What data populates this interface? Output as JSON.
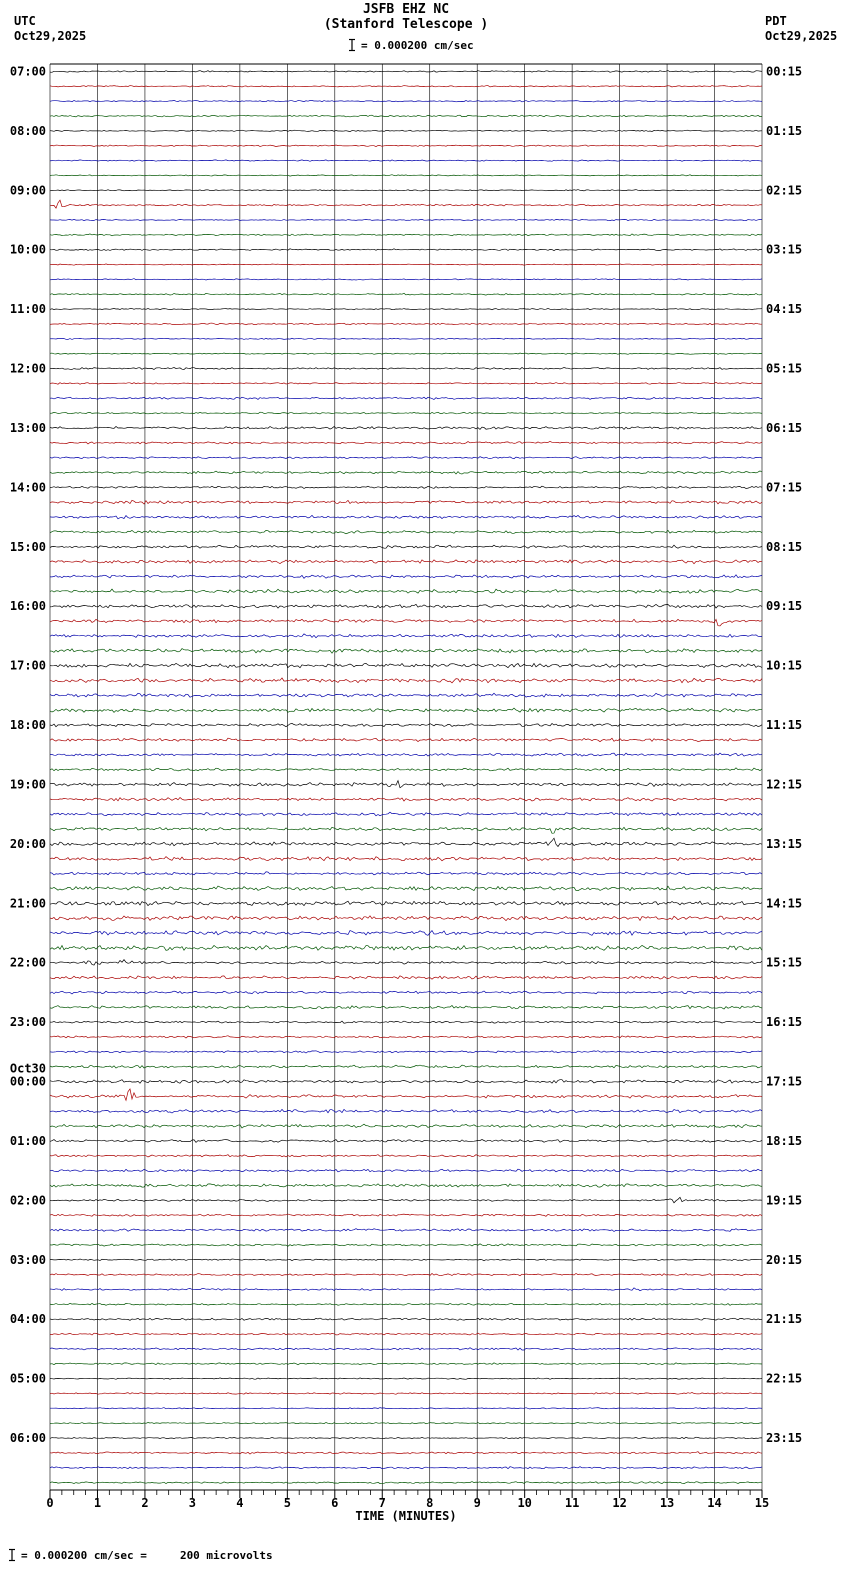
{
  "header": {
    "title": "JSFB EHZ NC",
    "subtitle": "(Stanford Telescope )",
    "scale_text": "= 0.000200 cm/sec",
    "left_timezone": "UTC",
    "left_date": "Oct29,2025",
    "right_timezone": "PDT",
    "right_date": "Oct29,2025"
  },
  "footer": {
    "note": "= 0.000200 cm/sec =     200 microvolts"
  },
  "chart_data": {
    "type": "line",
    "kind": "seismogram-helicorder",
    "station": "JSFB EHZ NC",
    "xlabel": "TIME (MINUTES)",
    "x_min": 0,
    "x_max": 15,
    "x_ticks": [
      "0",
      "1",
      "2",
      "3",
      "4",
      "5",
      "6",
      "7",
      "8",
      "9",
      "10",
      "11",
      "12",
      "13",
      "14",
      "15"
    ],
    "traces_per_hour": 4,
    "minutes_per_trace": 15,
    "trace_colors": [
      "#000000",
      "#aa0000",
      "#0000aa",
      "#005500"
    ],
    "date_break": {
      "label": "Oct30",
      "at_utc": "00:00"
    },
    "hours": [
      {
        "utc": "07:00",
        "pdt": "00:15",
        "noise_level": 0.5
      },
      {
        "utc": "08:00",
        "pdt": "01:15",
        "noise_level": 0.55
      },
      {
        "utc": "09:00",
        "pdt": "02:15",
        "noise_level": 0.5
      },
      {
        "utc": "10:00",
        "pdt": "03:15",
        "noise_level": 0.5
      },
      {
        "utc": "11:00",
        "pdt": "04:15",
        "noise_level": 0.5
      },
      {
        "utc": "12:00",
        "pdt": "05:15",
        "noise_level": 0.6
      },
      {
        "utc": "13:00",
        "pdt": "06:15",
        "noise_level": 0.8
      },
      {
        "utc": "14:00",
        "pdt": "07:15",
        "noise_level": 1.0
      },
      {
        "utc": "15:00",
        "pdt": "08:15",
        "noise_level": 1.1
      },
      {
        "utc": "16:00",
        "pdt": "09:15",
        "noise_level": 1.3
      },
      {
        "utc": "17:00",
        "pdt": "10:15",
        "noise_level": 1.3
      },
      {
        "utc": "18:00",
        "pdt": "11:15",
        "noise_level": 1.2
      },
      {
        "utc": "19:00",
        "pdt": "12:15",
        "noise_level": 1.2
      },
      {
        "utc": "20:00",
        "pdt": "13:15",
        "noise_level": 1.3
      },
      {
        "utc": "21:00",
        "pdt": "14:15",
        "noise_level": 1.4
      },
      {
        "utc": "22:00",
        "pdt": "15:15",
        "noise_level": 1.2
      },
      {
        "utc": "23:00",
        "pdt": "16:15",
        "noise_level": 0.9
      },
      {
        "utc": "00:00",
        "pdt": "17:15",
        "noise_level": 1.0
      },
      {
        "utc": "01:00",
        "pdt": "18:15",
        "noise_level": 0.9
      },
      {
        "utc": "02:00",
        "pdt": "19:15",
        "noise_level": 0.9
      },
      {
        "utc": "03:00",
        "pdt": "20:15",
        "noise_level": 0.6
      },
      {
        "utc": "04:00",
        "pdt": "21:15",
        "noise_level": 0.6
      },
      {
        "utc": "05:00",
        "pdt": "22:15",
        "noise_level": 0.5
      },
      {
        "utc": "06:00",
        "pdt": "23:15",
        "noise_level": 0.6
      }
    ],
    "events": [
      {
        "utc_hour": "09:00",
        "trace": 1,
        "minute": 0.2,
        "amplitude": 5
      },
      {
        "utc_hour": "16:00",
        "trace": 1,
        "minute": 14.1,
        "amplitude": 6
      },
      {
        "utc_hour": "19:00",
        "trace": 0,
        "minute": 7.3,
        "amplitude": 7
      },
      {
        "utc_hour": "19:00",
        "trace": 3,
        "minute": 10.6,
        "amplitude": 5
      },
      {
        "utc_hour": "20:00",
        "trace": 0,
        "minute": 10.6,
        "amplitude": 6
      },
      {
        "utc_hour": "22:00",
        "trace": 0,
        "minute": 0.9,
        "amplitude": 5
      },
      {
        "utc_hour": "22:00",
        "trace": 0,
        "minute": 1.6,
        "amplitude": 4
      },
      {
        "utc_hour": "00:00",
        "trace": 1,
        "minute": 1.7,
        "amplitude": 9
      },
      {
        "utc_hour": "02:00",
        "trace": 0,
        "minute": 13.2,
        "amplitude": 5
      },
      {
        "utc_hour": "03:00",
        "trace": 2,
        "minute": 12.4,
        "amplitude": 3
      },
      {
        "utc_hour": "04:00",
        "trace": 2,
        "minute": 9.9,
        "amplitude": 3
      }
    ]
  }
}
